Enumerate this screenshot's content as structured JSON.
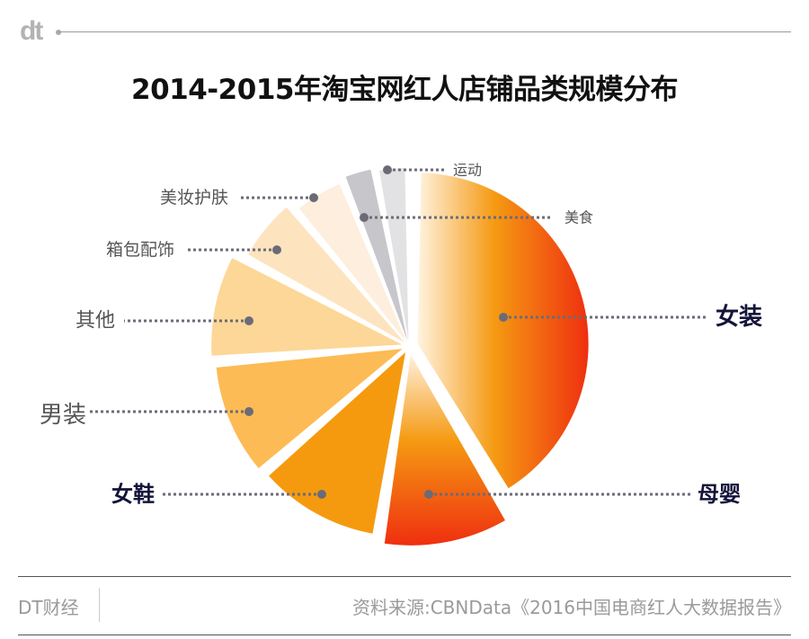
{
  "header": {
    "logo_text": "dt",
    "title": "2014-2015年淘宝网红人店铺品类规模分布"
  },
  "chart_data": {
    "type": "pie",
    "title": "2014-2015年淘宝网红人店铺品类规模分布",
    "value_unit": "percent (estimated, not labeled in image)",
    "start": "top",
    "direction": "clockwise",
    "slices": [
      {
        "name": "女装",
        "value": 41,
        "emphasis": true,
        "color_from": "#fff3e0",
        "color_mid": "#f59a12",
        "color_to": "#ef2f10",
        "gradient": "horizontal",
        "label_side": "right"
      },
      {
        "name": "母婴",
        "value": 11,
        "emphasis": true,
        "color_from": "#fff0dc",
        "color_mid": "#f59a12",
        "color_to": "#ef2f10",
        "gradient": "vertical",
        "label_side": "right"
      },
      {
        "name": "女鞋",
        "value": 11,
        "emphasis": true,
        "color": "#f59a0f",
        "label_side": "left"
      },
      {
        "name": "男装",
        "value": 10,
        "emphasis": false,
        "color": "#fdbb55",
        "label_side": "left"
      },
      {
        "name": "其他",
        "value": 9,
        "emphasis": false,
        "color": "#fdd797",
        "label_side": "left"
      },
      {
        "name": "箱包配饰",
        "value": 6,
        "emphasis": false,
        "color": "#fde4bf",
        "label_side": "left"
      },
      {
        "name": "美妆护肤",
        "value": 5,
        "emphasis": false,
        "color": "#fdeedd",
        "label_side": "left"
      },
      {
        "name": "美食",
        "value": 3,
        "emphasis": false,
        "color": "#c6c6cb",
        "label_side": "right"
      },
      {
        "name": "运动",
        "value": 3,
        "emphasis": false,
        "color": "#e2e2e4",
        "label_side": "right"
      }
    ],
    "legend": "none (leader-line labels)",
    "leader_line_color": "#6b6b78",
    "emphasis_label_color": "#14143a",
    "label_color": "#555555"
  },
  "footer": {
    "brand": "DT财经",
    "source": "资料来源:CBNData《2016中国电商红人大数据报告》"
  }
}
